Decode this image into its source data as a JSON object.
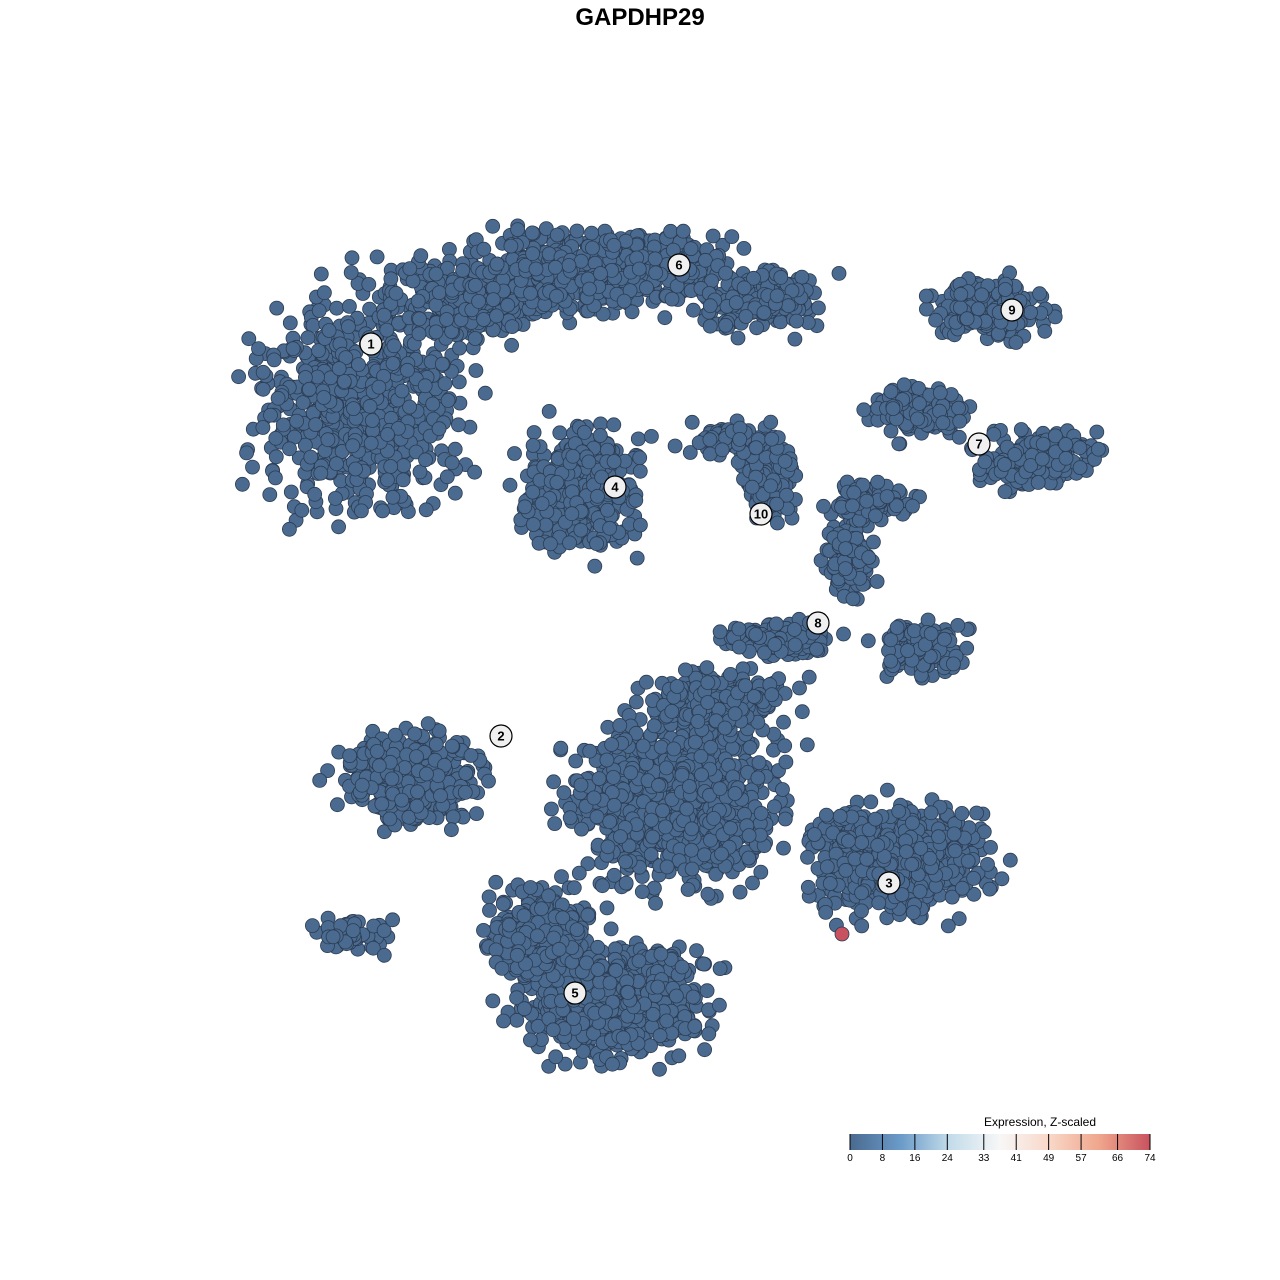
{
  "chart_data": {
    "type": "scatter",
    "title": "GAPDHP29",
    "xlabel": "",
    "ylabel": "",
    "grid": false,
    "point_color_low": "#4a6a8f",
    "point_color_high": "#c8525f",
    "cluster_labels": [
      "1",
      "2",
      "3",
      "4",
      "5",
      "6",
      "7",
      "8",
      "9",
      "10"
    ],
    "highlighted_points": [
      {
        "cluster": "3",
        "expression": 74
      }
    ],
    "legend": {
      "title": "Expression, Z-scaled",
      "placement": "bottom-right",
      "ticks": [
        "0",
        "8",
        "16",
        "24",
        "33",
        "41",
        "49",
        "57",
        "66",
        "74"
      ],
      "range": [
        0,
        74
      ],
      "colors": [
        "#4a6a8f",
        "#6a9ac8",
        "#c3dcea",
        "#f7f7f7",
        "#f9d7c7",
        "#efa58b",
        "#c8525f"
      ]
    }
  }
}
